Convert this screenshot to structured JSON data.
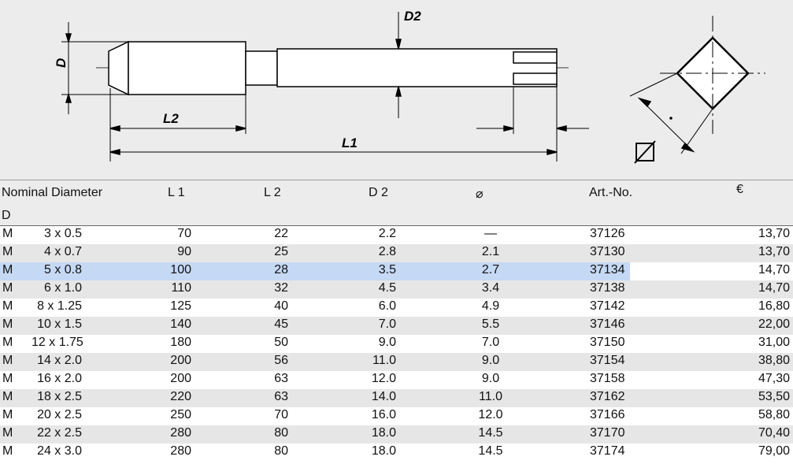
{
  "drawing": {
    "labels": {
      "d2": "D2",
      "d": "D",
      "l2": "L2",
      "l1": "L1"
    }
  },
  "table": {
    "headers": [
      "Nominal Diameter",
      "D",
      "L 1",
      "L 2",
      "D 2",
      "⌀",
      "Art.-No.",
      "€"
    ],
    "highlighted_row": 2,
    "rows": [
      [
        "M",
        "3 x 0.5",
        "70",
        "22",
        "2.2",
        "—",
        "37126",
        "13,70"
      ],
      [
        "M",
        "4 x 0.7",
        "90",
        "25",
        "2.8",
        "2.1",
        "37130",
        "13,70"
      ],
      [
        "M",
        "5 x 0.8",
        "100",
        "28",
        "3.5",
        "2.7",
        "37134",
        "14,70"
      ],
      [
        "M",
        "6 x 1.0",
        "110",
        "32",
        "4.5",
        "3.4",
        "37138",
        "14,70"
      ],
      [
        "M",
        "8 x 1.25",
        "125",
        "40",
        "6.0",
        "4.9",
        "37142",
        "16,80"
      ],
      [
        "M",
        "10 x 1.5",
        "140",
        "45",
        "7.0",
        "5.5",
        "37146",
        "22,00"
      ],
      [
        "M",
        "12 x 1.75",
        "180",
        "50",
        "9.0",
        "7.0",
        "37150",
        "31,00"
      ],
      [
        "M",
        "14 x 2.0",
        "200",
        "56",
        "11.0",
        "9.0",
        "37154",
        "38,80"
      ],
      [
        "M",
        "16 x 2.0",
        "200",
        "63",
        "12.0",
        "9.0",
        "37158",
        "47,30"
      ],
      [
        "M",
        "18 x 2.5",
        "220",
        "63",
        "14.0",
        "11.0",
        "37162",
        "53,50"
      ],
      [
        "M",
        "20 x 2.5",
        "250",
        "70",
        "16.0",
        "12.0",
        "37166",
        "58,80"
      ],
      [
        "M",
        "22 x 2.5",
        "280",
        "80",
        "18.0",
        "14.5",
        "37170",
        "70,40"
      ],
      [
        "M",
        "24 x 3.0",
        "280",
        "80",
        "18.0",
        "14.5",
        "37174",
        "79,00"
      ]
    ]
  }
}
